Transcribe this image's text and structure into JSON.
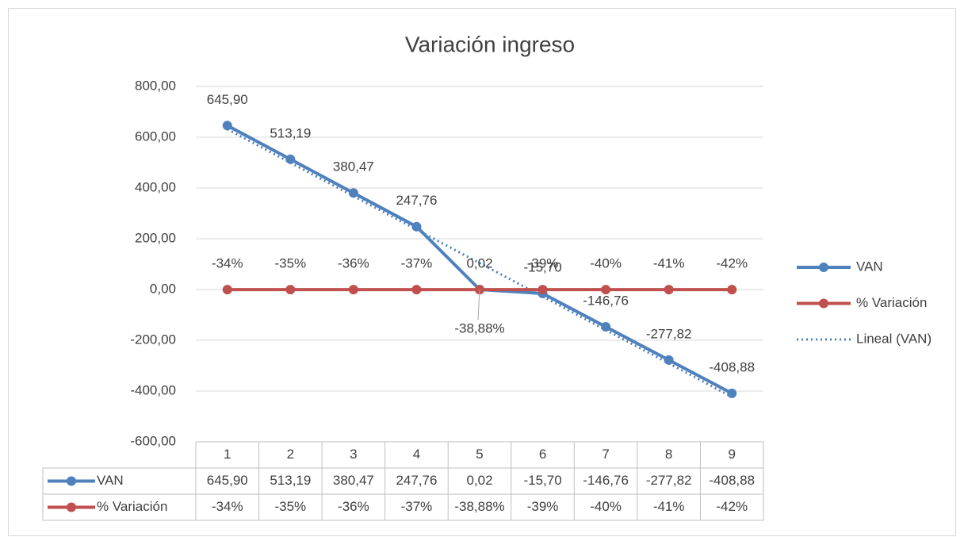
{
  "chart_data": {
    "type": "line",
    "title": "Variación ingreso",
    "categories": [
      1,
      2,
      3,
      4,
      5,
      6,
      7,
      8,
      9
    ],
    "ylim": [
      -600,
      800
    ],
    "yticks": [
      {
        "value": -600,
        "label": "-600,00"
      },
      {
        "value": -400,
        "label": "-400,00"
      },
      {
        "value": -200,
        "label": "-200,00"
      },
      {
        "value": 0,
        "label": "0,00"
      },
      {
        "value": 200,
        "label": "200,00"
      },
      {
        "value": 400,
        "label": "400,00"
      },
      {
        "value": 600,
        "label": "600,00"
      },
      {
        "value": 800,
        "label": "800,00"
      }
    ],
    "grid": true,
    "legend": "right",
    "data_table": true,
    "series": [
      {
        "name": "VAN",
        "color": "#4f81bd",
        "marker": true,
        "in_table": true,
        "values": [
          645.9,
          513.19,
          380.47,
          247.76,
          0.02,
          -15.7,
          -146.76,
          -277.82,
          -408.88
        ],
        "value_labels": [
          "645,90",
          "513,19",
          "380,47",
          "247,76",
          "0,02",
          "-15,70",
          "-146,76",
          "-277,82",
          "-408,88"
        ]
      },
      {
        "name": "% Variación",
        "color": "#c0504d",
        "marker": true,
        "in_table": true,
        "values": [
          -0.34,
          -0.35,
          -0.36,
          -0.37,
          -0.3888,
          -0.39,
          -0.4,
          -0.41,
          -0.42
        ],
        "value_labels": [
          "-34%",
          "-35%",
          "-36%",
          "-37%",
          "-38,88%",
          "-39%",
          "-40%",
          "-41%",
          "-42%"
        ]
      },
      {
        "name": "Lineal (VAN)",
        "color": "#4f81bd",
        "marker": false,
        "dash": "dotted",
        "in_table": false,
        "values": [
          631.56,
          499.73,
          367.9,
          236.07,
          104.24,
          -27.59,
          -159.42,
          -291.25,
          -423.08
        ]
      }
    ]
  }
}
